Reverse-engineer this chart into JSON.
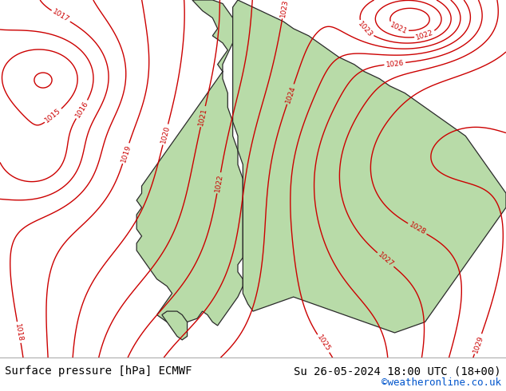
{
  "bottom_left_text": "Surface pressure [hPa] ECMWF",
  "bottom_right_text": "Su 26-05-2024 18:00 UTC (18+00)",
  "credit_text": "©weatheronline.co.uk",
  "bg_color": "#d8d8d8",
  "land_color": "#b8dba8",
  "bottom_bar_color": "#ffffff",
  "contour_color_red": "#cc0000",
  "contour_color_black": "#111111",
  "contour_color_blue": "#0000cc",
  "fig_width": 6.34,
  "fig_height": 4.9,
  "dpi": 100,
  "font_size_bottom": 10,
  "font_size_credit": 9
}
